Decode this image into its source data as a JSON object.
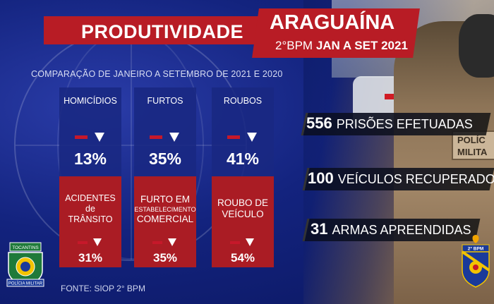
{
  "header": {
    "title": "PRODUTIVIDADE",
    "city": "ARAGUAÍNA",
    "unit": "2°BPM",
    "period": "JAN A SET 2021"
  },
  "comparison": "COMPARAÇÃO DE JANEIRO A SETEMBRO DE 2021 E 2020",
  "cards": [
    {
      "top_label": "HOMICÍDIOS",
      "top_value": "13%",
      "bottom_label": [
        "ACIDENTES",
        "de",
        "TRÂNSITO"
      ],
      "bottom_value": "31%"
    },
    {
      "top_label": "FURTOS",
      "top_value": "35%",
      "bottom_label": [
        "FURTO EM",
        "ESTABELECIMENTO",
        "COMERCIAL"
      ],
      "bottom_value": "35%"
    },
    {
      "top_label": "ROUBOS",
      "top_value": "41%",
      "bottom_label": [
        "ROUBO DE",
        "VEÍCULO"
      ],
      "bottom_value": "54%"
    }
  ],
  "stats": [
    {
      "number": "556",
      "text": "PRISÕES EFETUADAS"
    },
    {
      "number": "100",
      "text": "VEÍCULOS RECUPERADOS"
    },
    {
      "number": "31",
      "text": "ARMAS APREENDIDAS"
    }
  ],
  "source": "FONTE: SIOP 2° BPM",
  "photo": {
    "vest_label_1": "POLÍC",
    "vest_label_2": "MILITA"
  },
  "seals": {
    "left_top": "TOCANTINS",
    "left_bottom": "POLÍCIA MILITAR",
    "right_top": "2° BPM"
  },
  "colors": {
    "red": "#b81c25",
    "navy": "#13237e"
  }
}
